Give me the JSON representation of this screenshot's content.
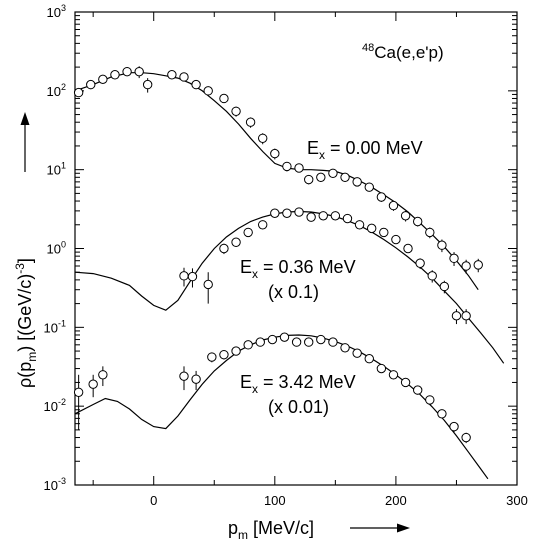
{
  "chart_data": {
    "type": "scatter",
    "title": "",
    "xlabel": "p",
    "xlabel_sub": "m",
    "xlabel_unit": " [MeV/c]",
    "ylabel": "ρ(p",
    "ylabel_sub": "m",
    "ylabel_rest": ") [(GeV/c)",
    "ylabel_sup": "-3",
    "ylabel_end": "]",
    "yscale": "log",
    "xlim": [
      -65,
      300
    ],
    "ylim": [
      0.001,
      1000
    ],
    "x_ticks": [
      0,
      100,
      200,
      300
    ],
    "x_tick_labels": [
      "0",
      "100",
      "200",
      "300"
    ],
    "y_ticks": [
      0.001,
      0.01,
      0.1,
      1,
      10,
      100,
      1000
    ],
    "y_tick_labels": [
      {
        "base": "10",
        "exp": "-3"
      },
      {
        "base": "10",
        "exp": "-2"
      },
      {
        "base": "10",
        "exp": "-1"
      },
      {
        "base": "10",
        "exp": "0"
      },
      {
        "base": "10",
        "exp": "1"
      },
      {
        "base": "10",
        "exp": "2"
      },
      {
        "base": "10",
        "exp": "3"
      }
    ],
    "reaction_label": {
      "sup": "48",
      "text": "Ca(e,e'p)"
    },
    "annotations": [
      {
        "main": "E",
        "sub": "x",
        "rest": " = 0.00 MeV",
        "scale": ""
      },
      {
        "main": "E",
        "sub": "x",
        "rest": " = 0.36 MeV",
        "scale": "(x 0.1)"
      },
      {
        "main": "E",
        "sub": "x",
        "rest": " = 3.42 MeV",
        "scale": "(x 0.01)"
      }
    ],
    "series": [
      {
        "data": [
          [
            -62,
            95,
            10
          ],
          [
            -52,
            120,
            15
          ],
          [
            -42,
            140,
            15
          ],
          [
            -32,
            160,
            15
          ],
          [
            -22,
            175,
            15
          ],
          [
            -12,
            175,
            30
          ],
          [
            -5,
            120,
            25
          ],
          [
            15,
            160,
            15
          ],
          [
            25,
            150,
            15
          ],
          [
            35,
            120,
            15
          ],
          [
            45,
            100,
            12
          ],
          [
            58,
            80,
            10
          ],
          [
            68,
            55,
            8
          ],
          [
            80,
            40,
            6
          ],
          [
            90,
            25,
            4
          ],
          [
            100,
            16,
            2.5
          ],
          [
            110,
            11,
            1.5
          ],
          [
            120,
            10.5,
            1.2
          ],
          [
            128,
            7.5,
            1
          ],
          [
            138,
            8,
            1
          ],
          [
            148,
            9,
            1
          ],
          [
            158,
            8,
            1
          ],
          [
            168,
            7,
            0.8
          ],
          [
            178,
            6,
            0.7
          ],
          [
            188,
            4.5,
            0.6
          ],
          [
            198,
            3.5,
            0.5
          ],
          [
            208,
            2.6,
            0.4
          ],
          [
            218,
            2.2,
            0.3
          ],
          [
            228,
            1.6,
            0.25
          ],
          [
            238,
            1.1,
            0.2
          ],
          [
            248,
            0.75,
            0.15
          ],
          [
            258,
            0.6,
            0.12
          ],
          [
            268,
            0.62,
            0.12
          ]
        ],
        "curve": [
          [
            -65,
            100
          ],
          [
            -50,
            120
          ],
          [
            -35,
            150
          ],
          [
            -20,
            170
          ],
          [
            -10,
            170
          ],
          [
            0,
            165
          ],
          [
            10,
            155
          ],
          [
            20,
            145
          ],
          [
            30,
            125
          ],
          [
            40,
            100
          ],
          [
            50,
            75
          ],
          [
            60,
            55
          ],
          [
            70,
            38
          ],
          [
            80,
            25
          ],
          [
            90,
            17
          ],
          [
            100,
            12
          ],
          [
            110,
            10.5
          ],
          [
            120,
            10
          ],
          [
            130,
            10
          ],
          [
            140,
            9.8
          ],
          [
            150,
            9.5
          ],
          [
            160,
            8.5
          ],
          [
            170,
            7.2
          ],
          [
            180,
            6
          ],
          [
            190,
            4.8
          ],
          [
            200,
            3.8
          ],
          [
            210,
            2.9
          ],
          [
            220,
            2.1
          ],
          [
            230,
            1.5
          ],
          [
            240,
            1.05
          ],
          [
            250,
            0.7
          ],
          [
            260,
            0.45
          ],
          [
            268,
            0.3
          ]
        ]
      },
      {
        "data": [
          [
            25,
            0.45,
            0.12
          ],
          [
            32,
            0.44,
            0.12
          ],
          [
            45,
            0.35,
            0.15
          ],
          [
            58,
            1.0,
            0.15
          ],
          [
            68,
            1.2,
            0.15
          ],
          [
            78,
            1.6,
            0.2
          ],
          [
            90,
            2.0,
            0.2
          ],
          [
            100,
            2.8,
            0.25
          ],
          [
            110,
            2.8,
            0.25
          ],
          [
            120,
            2.9,
            0.25
          ],
          [
            130,
            2.5,
            0.25
          ],
          [
            140,
            2.6,
            0.25
          ],
          [
            150,
            2.6,
            0.25
          ],
          [
            160,
            2.4,
            0.25
          ],
          [
            170,
            2.0,
            0.2
          ],
          [
            180,
            1.8,
            0.2
          ],
          [
            190,
            1.6,
            0.18
          ],
          [
            200,
            1.3,
            0.15
          ],
          [
            210,
            1.0,
            0.12
          ],
          [
            220,
            0.65,
            0.1
          ],
          [
            230,
            0.45,
            0.08
          ],
          [
            240,
            0.33,
            0.06
          ],
          [
            250,
            0.14,
            0.03
          ],
          [
            258,
            0.14,
            0.03
          ]
        ],
        "curve": [
          [
            -65,
            0.5
          ],
          [
            -50,
            0.48
          ],
          [
            -35,
            0.42
          ],
          [
            -20,
            0.34
          ],
          [
            -10,
            0.25
          ],
          [
            0,
            0.19
          ],
          [
            10,
            0.165
          ],
          [
            20,
            0.22
          ],
          [
            30,
            0.38
          ],
          [
            40,
            0.65
          ],
          [
            50,
            1.0
          ],
          [
            60,
            1.4
          ],
          [
            70,
            1.8
          ],
          [
            80,
            2.2
          ],
          [
            90,
            2.5
          ],
          [
            100,
            2.75
          ],
          [
            110,
            2.9
          ],
          [
            120,
            2.95
          ],
          [
            130,
            2.9
          ],
          [
            140,
            2.75
          ],
          [
            150,
            2.55
          ],
          [
            160,
            2.25
          ],
          [
            170,
            1.95
          ],
          [
            180,
            1.62
          ],
          [
            190,
            1.3
          ],
          [
            200,
            1.02
          ],
          [
            210,
            0.78
          ],
          [
            220,
            0.58
          ],
          [
            230,
            0.42
          ],
          [
            240,
            0.29
          ],
          [
            250,
            0.2
          ],
          [
            260,
            0.13
          ],
          [
            270,
            0.085
          ],
          [
            280,
            0.055
          ],
          [
            289,
            0.035
          ]
        ]
      },
      {
        "data": [
          [
            -62,
            0.015,
            0.01
          ],
          [
            -50,
            0.019,
            0.006
          ],
          [
            -42,
            0.025,
            0.007
          ],
          [
            25,
            0.024,
            0.008
          ],
          [
            35,
            0.022,
            0.006
          ],
          [
            48,
            0.042,
            0.006
          ],
          [
            58,
            0.045,
            0.006
          ],
          [
            68,
            0.05,
            0.006
          ],
          [
            78,
            0.06,
            0.006
          ],
          [
            88,
            0.065,
            0.006
          ],
          [
            98,
            0.07,
            0.006
          ],
          [
            108,
            0.075,
            0.006
          ],
          [
            118,
            0.065,
            0.006
          ],
          [
            128,
            0.065,
            0.006
          ],
          [
            138,
            0.07,
            0.006
          ],
          [
            148,
            0.065,
            0.006
          ],
          [
            158,
            0.055,
            0.005
          ],
          [
            168,
            0.047,
            0.005
          ],
          [
            178,
            0.04,
            0.004
          ],
          [
            188,
            0.03,
            0.003
          ],
          [
            198,
            0.025,
            0.003
          ],
          [
            208,
            0.02,
            0.002
          ],
          [
            218,
            0.016,
            0.002
          ],
          [
            228,
            0.012,
            0.0015
          ],
          [
            238,
            0.008,
            0.001
          ],
          [
            248,
            0.0055,
            0.0008
          ],
          [
            258,
            0.004,
            0.0006
          ]
        ],
        "curve": [
          [
            -65,
            0.008
          ],
          [
            -50,
            0.0105
          ],
          [
            -40,
            0.0125
          ],
          [
            -30,
            0.0115
          ],
          [
            -20,
            0.0092
          ],
          [
            -10,
            0.0068
          ],
          [
            0,
            0.0055
          ],
          [
            10,
            0.0052
          ],
          [
            20,
            0.0075
          ],
          [
            30,
            0.012
          ],
          [
            40,
            0.019
          ],
          [
            50,
            0.028
          ],
          [
            60,
            0.038
          ],
          [
            70,
            0.05
          ],
          [
            80,
            0.06
          ],
          [
            90,
            0.069
          ],
          [
            100,
            0.075
          ],
          [
            110,
            0.079
          ],
          [
            120,
            0.08
          ],
          [
            130,
            0.078
          ],
          [
            140,
            0.073
          ],
          [
            150,
            0.066
          ],
          [
            160,
            0.058
          ],
          [
            170,
            0.049
          ],
          [
            180,
            0.04
          ],
          [
            190,
            0.032
          ],
          [
            200,
            0.025
          ],
          [
            210,
            0.019
          ],
          [
            220,
            0.014
          ],
          [
            230,
            0.0098
          ],
          [
            240,
            0.0066
          ],
          [
            250,
            0.0042
          ],
          [
            260,
            0.0026
          ],
          [
            270,
            0.0016
          ],
          [
            276,
            0.0012
          ]
        ]
      }
    ]
  }
}
